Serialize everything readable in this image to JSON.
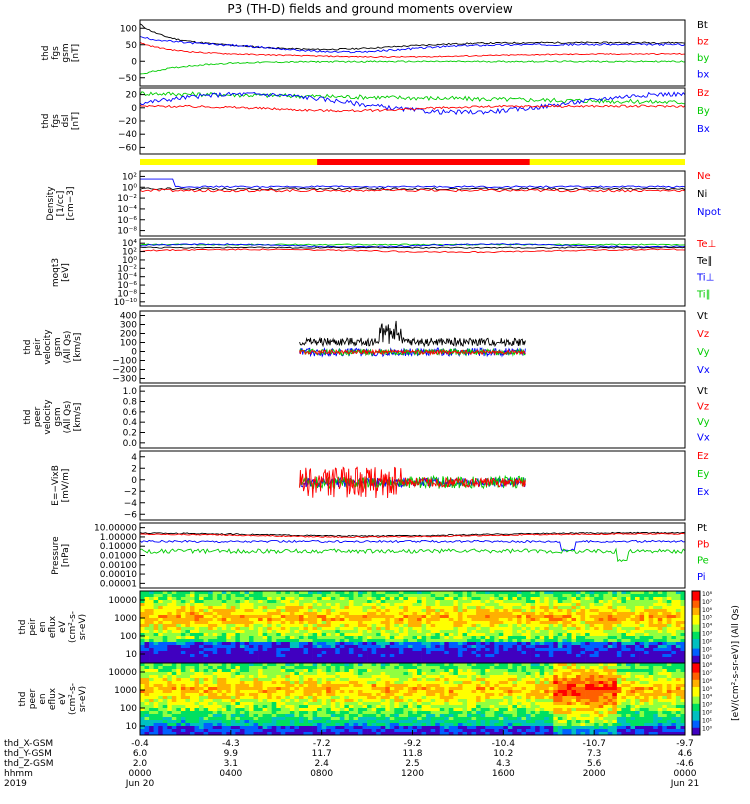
{
  "title": "P3 (TH-D) fields and ground moments overview",
  "colors": {
    "black": "#000000",
    "red": "#ff0000",
    "green": "#00cc00",
    "blue": "#0000ff",
    "yellow": "#ffff00"
  },
  "chart_data": {
    "type": "line",
    "x_axis": {
      "row_labels": [
        "thd_X-GSM",
        "thd_Y-GSM",
        "thd_Z-GSM",
        "hhmm",
        "2019"
      ],
      "ticks": [
        {
          "x": "-0.4",
          "y": "6.0",
          "z": "2.0",
          "hhmm": "0000",
          "date": "Jun 20"
        },
        {
          "x": "-4.3",
          "y": "9.9",
          "z": "3.1",
          "hhmm": "0400",
          "date": ""
        },
        {
          "x": "-7.2",
          "y": "11.7",
          "z": "2.4",
          "hhmm": "0800",
          "date": ""
        },
        {
          "x": "-9.2",
          "y": "11.8",
          "z": "2.5",
          "hhmm": "1200",
          "date": ""
        },
        {
          "x": "-10.4",
          "y": "10.2",
          "z": "4.3",
          "hhmm": "1600",
          "date": ""
        },
        {
          "x": "-10.7",
          "y": "7.3",
          "z": "5.6",
          "hhmm": "2000",
          "date": ""
        },
        {
          "x": "-9.7",
          "y": "4.6",
          "z": "-4.6",
          "hhmm": "0000",
          "date": "Jun 21"
        }
      ],
      "xlim_hours": [
        0,
        24
      ]
    },
    "panels": [
      {
        "id": "fgs-gsm",
        "ylabel": [
          "thd",
          "fgs",
          "gsm",
          "[nT]"
        ],
        "yticks": [
          "100",
          "50",
          "0",
          "−50"
        ],
        "ylim": [
          -75,
          100
        ],
        "legend": [
          {
            "label": "Bt",
            "color": "black"
          },
          {
            "label": "bz",
            "color": "red"
          },
          {
            "label": "by",
            "color": "green"
          },
          {
            "label": "bx",
            "color": "blue"
          }
        ]
      },
      {
        "id": "fgs-dsl",
        "ylabel": [
          "thd",
          "fgs",
          "dsl",
          "[nT]"
        ],
        "yticks": [
          "20",
          "0",
          "−20",
          "−40",
          "−60"
        ],
        "ylim": [
          -65,
          22
        ],
        "legend": [
          {
            "label": "Bz",
            "color": "red"
          },
          {
            "label": "By",
            "color": "green"
          },
          {
            "label": "Bx",
            "color": "blue"
          }
        ]
      },
      {
        "id": "density",
        "ylabel": [
          "Density",
          "[1/cc]",
          "[cm−3]"
        ],
        "yticks": [
          "10²",
          "10⁰",
          "10⁻²",
          "10⁻⁴",
          "10⁻⁶",
          "10⁻⁸"
        ],
        "ylim_log10": [
          -9,
          3
        ],
        "legend": [
          {
            "label": "Ne",
            "color": "red"
          },
          {
            "label": "Ni",
            "color": "black"
          },
          {
            "label": "Npot",
            "color": "blue"
          }
        ]
      },
      {
        "id": "temperature",
        "ylabel": [
          "moqt3",
          "[eV]"
        ],
        "yticks": [
          "10⁴",
          "10²",
          "10⁰",
          "10⁻²",
          "10⁻⁴",
          "10⁻⁶",
          "10⁻⁸",
          "10⁻¹⁰"
        ],
        "ylim_log10": [
          -11,
          4.5
        ],
        "legend": [
          {
            "label": "Te⊥",
            "color": "red"
          },
          {
            "label": "Te∥",
            "color": "black"
          },
          {
            "label": "Ti⊥",
            "color": "blue"
          },
          {
            "label": "Ti∥",
            "color": "green"
          }
        ]
      },
      {
        "id": "ion-velocity",
        "ylabel": [
          "thd",
          "peir",
          "velocity",
          "gsm",
          "(All Qs)",
          "[km/s]"
        ],
        "yticks": [
          "400",
          "300",
          "200",
          "100",
          "0",
          "−100",
          "−200",
          "−300"
        ],
        "ylim": [
          -300,
          400
        ],
        "legend": [
          {
            "label": "Vt",
            "color": "black"
          },
          {
            "label": "Vz",
            "color": "red"
          },
          {
            "label": "Vy",
            "color": "green"
          },
          {
            "label": "Vx",
            "color": "blue"
          }
        ]
      },
      {
        "id": "electron-velocity",
        "ylabel": [
          "thd",
          "peer",
          "velocity",
          "gsm",
          "(All Qs)",
          "[km/s]"
        ],
        "yticks": [
          "1.0",
          "0.8",
          "0.6",
          "0.4",
          "0.2",
          "0.0"
        ],
        "ylim": [
          0,
          1
        ],
        "legend": [
          {
            "label": "Vt",
            "color": "black"
          },
          {
            "label": "Vz",
            "color": "red"
          },
          {
            "label": "Vy",
            "color": "green"
          },
          {
            "label": "Vx",
            "color": "blue"
          }
        ]
      },
      {
        "id": "efield",
        "ylabel": [
          "E=−VixB",
          "[mV/m]"
        ],
        "yticks": [
          "4",
          "2",
          "0",
          "−2",
          "−4",
          "−6"
        ],
        "ylim": [
          -6,
          5
        ],
        "legend": [
          {
            "label": "Ez",
            "color": "red"
          },
          {
            "label": "Ey",
            "color": "green"
          },
          {
            "label": "Ex",
            "color": "blue"
          }
        ]
      },
      {
        "id": "pressure",
        "ylabel": [
          "Pressure",
          "[nPa]"
        ],
        "yticks": [
          "10.00000",
          "1.00000",
          "0.10000",
          "0.01000",
          "0.00100",
          "0.00010",
          "0.00001"
        ],
        "ylim_log10": [
          -5,
          1
        ],
        "legend": [
          {
            "label": "Pt",
            "color": "black"
          },
          {
            "label": "Pb",
            "color": "red"
          },
          {
            "label": "Pe",
            "color": "green"
          },
          {
            "label": "Pi",
            "color": "blue"
          }
        ]
      },
      {
        "id": "ion-spectrogram",
        "type": "heatmap",
        "ylabel": [
          "thd",
          "peir",
          "en",
          "eflux",
          "eV",
          "(cm²-s-",
          "sr-eV)"
        ],
        "yticks": [
          "10000",
          "1000",
          "100",
          "10"
        ],
        "ylim_log10": [
          0.7,
          4.4
        ]
      },
      {
        "id": "electron-spectrogram",
        "type": "heatmap",
        "ylabel": [
          "thd",
          "peer",
          "en",
          "eflux",
          "eV",
          "(cm²-s-",
          "sr-eV)"
        ],
        "yticks": [
          "10000",
          "1000",
          "100",
          "10"
        ],
        "ylim_log10": [
          0.7,
          4.4
        ]
      }
    ],
    "colorbar": {
      "label": "[eV/(cm²-s-sr-eV)] (All Qs)",
      "ticks": [
        "10⁸",
        "10⁷",
        "10⁶",
        "10⁵",
        "10⁴",
        "10³",
        "10²",
        "10¹",
        "10⁰",
        "10⁸",
        "10⁷",
        "10⁶",
        "10⁵",
        "10⁴",
        "10³",
        "10²",
        "10¹",
        "10⁰"
      ]
    }
  }
}
